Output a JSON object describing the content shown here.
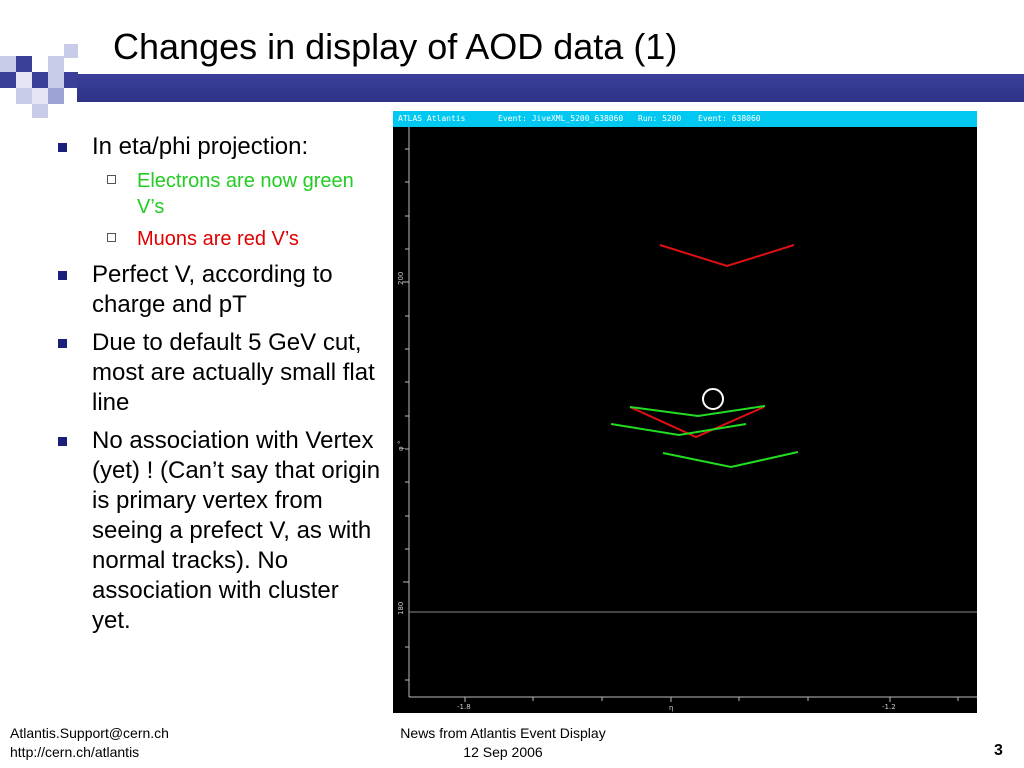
{
  "slide": {
    "title": "Changes in display of AOD data (1)",
    "bullets": [
      {
        "text": "In eta/phi projection:"
      },
      {
        "text": "Perfect V, according to charge and pT"
      },
      {
        "text": "Due to default 5 GeV cut, most are actually small flat line"
      },
      {
        "text": "No association with Vertex (yet) ! (Can’t say that origin is primary vertex from seeing a prefect V, as with normal tracks). No association with cluster yet."
      }
    ],
    "sub_bullets": [
      {
        "text": "Electrons are now green V’s",
        "color": "#22cc22"
      },
      {
        "text": "Muons are red V’s",
        "color": "#e00000"
      }
    ],
    "page_number": "3"
  },
  "atlantis": {
    "header": {
      "app": "ATLAS Atlantis",
      "event_file": "Event: JiveXML_5200_638060",
      "run": "Run: 5200",
      "event": "Event: 638060"
    },
    "y_axis": {
      "label": "φ °",
      "tick_labels": [
        "200",
        "180"
      ]
    },
    "x_axis": {
      "label": "η",
      "tick_labels": [
        "-1.8",
        "-1.2"
      ]
    },
    "electron_color": "#22dd22",
    "muon_color": "#dd1111",
    "vertex_marker_color": "#ffffff",
    "background_color": "#000000"
  },
  "footer": {
    "email": "Atlantis.Support@cern.ch",
    "url": "http://cern.ch/atlantis",
    "presentation": "News from Atlantis Event Display",
    "date": "12 Sep 2006"
  },
  "theme": {
    "accent_dark": "#2e3388",
    "accent_light": "#9ea3d6"
  }
}
